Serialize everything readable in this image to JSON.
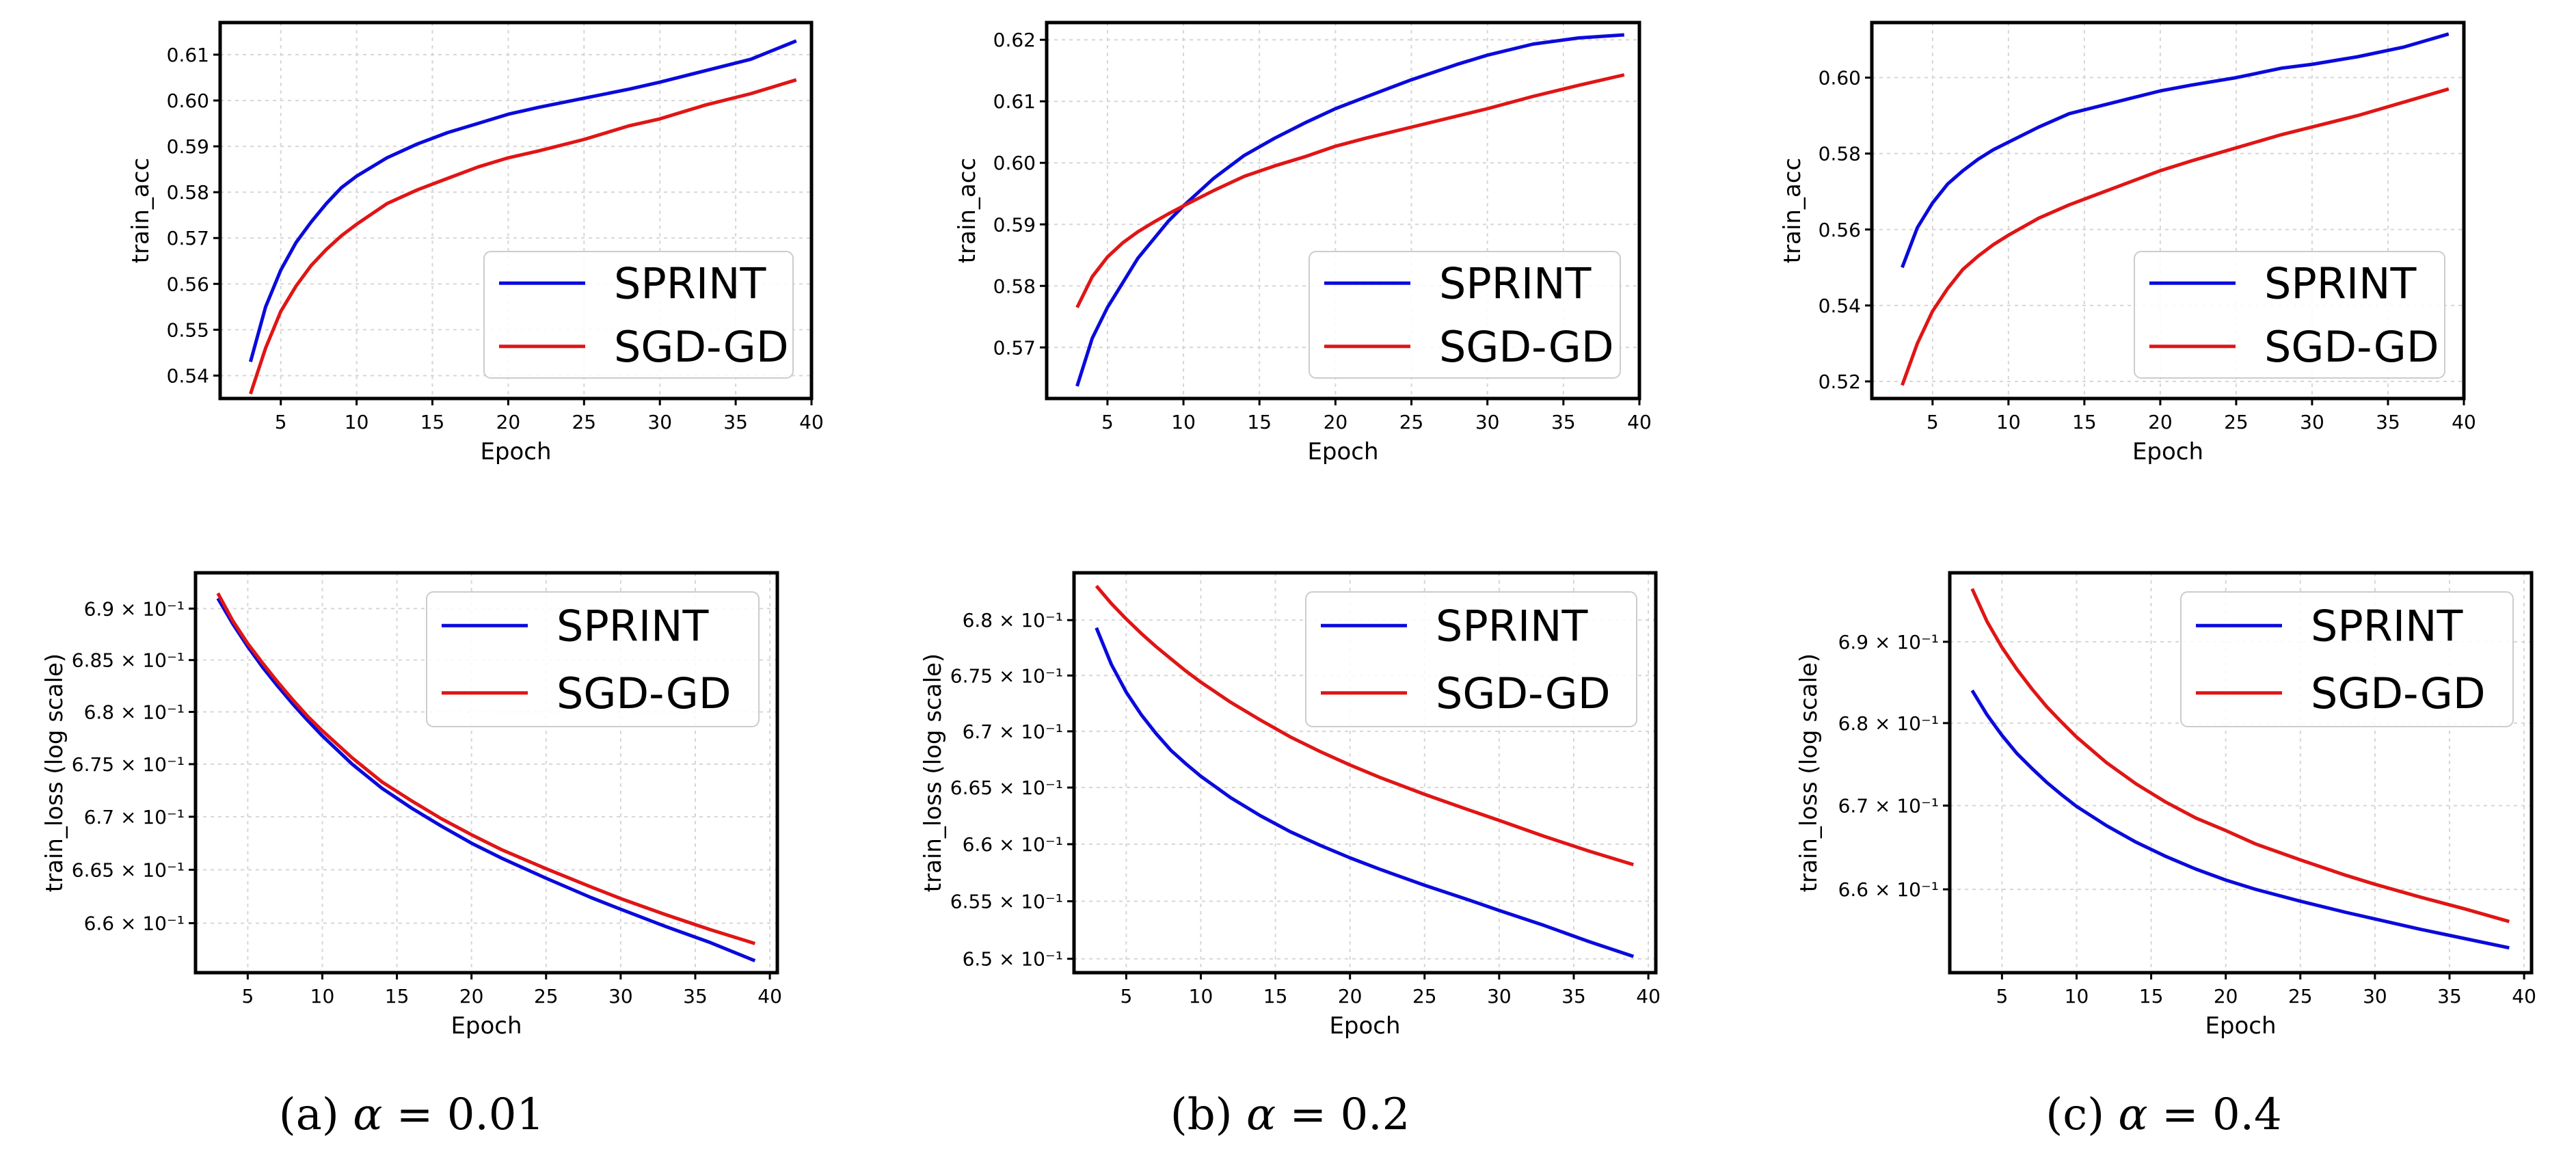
{
  "colors": {
    "SPRINT": "#0a0adc",
    "SGD-GD": "#e01515"
  },
  "captions": [
    {
      "prefix": "(a) ",
      "alpha": "α",
      "rest": " = 0.01"
    },
    {
      "prefix": "(b) ",
      "alpha": "α",
      "rest": " = 0.2"
    },
    {
      "prefix": "(c) ",
      "alpha": "α",
      "rest": " = 0.4"
    }
  ],
  "chart_data": [
    {
      "type": "line",
      "panel": "a-top",
      "title": "",
      "xlabel": "Epoch",
      "ylabel": "train_acc",
      "xlim": [
        1,
        40
      ],
      "ylim": [
        0.535,
        0.617
      ],
      "xticks": [
        5,
        10,
        15,
        20,
        25,
        30,
        35,
        40
      ],
      "yticks": [
        0.54,
        0.55,
        0.56,
        0.57,
        0.58,
        0.59,
        0.6,
        0.61
      ],
      "ytick_labels": [
        "0.54",
        "0.55",
        "0.56",
        "0.57",
        "0.58",
        "0.59",
        "0.60",
        "0.61"
      ],
      "yscale": "linear",
      "grid": true,
      "legend": "lower-right",
      "series": [
        {
          "name": "SPRINT",
          "x": [
            3,
            4,
            5,
            6,
            7,
            8,
            9,
            10,
            12,
            14,
            16,
            18,
            20,
            22,
            25,
            28,
            30,
            33,
            36,
            39
          ],
          "y": [
            0.543,
            0.555,
            0.563,
            0.569,
            0.5735,
            0.5775,
            0.581,
            0.5835,
            0.5875,
            0.5905,
            0.593,
            0.595,
            0.597,
            0.5985,
            0.6005,
            0.6025,
            0.604,
            0.6065,
            0.609,
            0.613
          ]
        },
        {
          "name": "SGD-GD",
          "x": [
            3,
            4,
            5,
            6,
            7,
            8,
            9,
            10,
            12,
            14,
            16,
            18,
            20,
            22,
            25,
            28,
            30,
            33,
            36,
            39
          ],
          "y": [
            0.536,
            0.546,
            0.554,
            0.5595,
            0.564,
            0.5675,
            0.5705,
            0.573,
            0.5775,
            0.5805,
            0.583,
            0.5855,
            0.5875,
            0.589,
            0.5915,
            0.5945,
            0.596,
            0.599,
            0.6015,
            0.6045
          ]
        }
      ]
    },
    {
      "type": "line",
      "panel": "b-top",
      "title": "",
      "xlabel": "Epoch",
      "ylabel": "train_acc",
      "xlim": [
        1,
        40
      ],
      "ylim": [
        0.5617,
        0.6228
      ],
      "xticks": [
        5,
        10,
        15,
        20,
        25,
        30,
        35,
        40
      ],
      "yticks": [
        0.57,
        0.58,
        0.59,
        0.6,
        0.61,
        0.62
      ],
      "ytick_labels": [
        "0.57",
        "0.58",
        "0.59",
        "0.60",
        "0.61",
        "0.62"
      ],
      "yscale": "linear",
      "grid": true,
      "legend": "lower-right",
      "series": [
        {
          "name": "SPRINT",
          "x": [
            3,
            4,
            5,
            6,
            7,
            8,
            9,
            10,
            12,
            14,
            16,
            18,
            20,
            22,
            25,
            28,
            30,
            33,
            36,
            39
          ],
          "y": [
            0.5637,
            0.5715,
            0.5765,
            0.5805,
            0.5845,
            0.5875,
            0.5905,
            0.593,
            0.5975,
            0.6012,
            0.604,
            0.6065,
            0.6088,
            0.6107,
            0.6135,
            0.616,
            0.6175,
            0.6193,
            0.6203,
            0.6208
          ]
        },
        {
          "name": "SGD-GD",
          "x": [
            3,
            4,
            5,
            6,
            7,
            8,
            9,
            10,
            12,
            14,
            16,
            18,
            20,
            22,
            25,
            28,
            30,
            33,
            36,
            39
          ],
          "y": [
            0.5765,
            0.5815,
            0.5847,
            0.587,
            0.5888,
            0.5903,
            0.5917,
            0.593,
            0.5955,
            0.5978,
            0.5995,
            0.601,
            0.6027,
            0.604,
            0.6058,
            0.6076,
            0.6088,
            0.6108,
            0.6126,
            0.6143
          ]
        }
      ]
    },
    {
      "type": "line",
      "panel": "c-top",
      "title": "",
      "xlabel": "Epoch",
      "ylabel": "train_acc",
      "xlim": [
        1,
        40
      ],
      "ylim": [
        0.5155,
        0.6145
      ],
      "xticks": [
        5,
        10,
        15,
        20,
        25,
        30,
        35,
        40
      ],
      "yticks": [
        0.52,
        0.54,
        0.56,
        0.58,
        0.6
      ],
      "ytick_labels": [
        "0.52",
        "0.54",
        "0.56",
        "0.58",
        "0.60"
      ],
      "yscale": "linear",
      "grid": true,
      "legend": "lower-right",
      "series": [
        {
          "name": "SPRINT",
          "x": [
            3,
            4,
            5,
            6,
            7,
            8,
            9,
            10,
            12,
            14,
            16,
            18,
            20,
            22,
            25,
            28,
            30,
            33,
            36,
            39
          ],
          "y": [
            0.55,
            0.5605,
            0.567,
            0.572,
            0.5755,
            0.5785,
            0.581,
            0.583,
            0.587,
            0.5905,
            0.5925,
            0.5945,
            0.5965,
            0.598,
            0.6,
            0.6025,
            0.6035,
            0.6055,
            0.608,
            0.6115
          ]
        },
        {
          "name": "SGD-GD",
          "x": [
            3,
            4,
            5,
            6,
            7,
            8,
            9,
            10,
            12,
            14,
            16,
            18,
            20,
            22,
            25,
            28,
            30,
            33,
            36,
            39
          ],
          "y": [
            0.519,
            0.53,
            0.5385,
            0.5445,
            0.5495,
            0.553,
            0.556,
            0.5585,
            0.563,
            0.5665,
            0.5695,
            0.5725,
            0.5755,
            0.578,
            0.5815,
            0.585,
            0.587,
            0.59,
            0.5935,
            0.597
          ]
        }
      ]
    },
    {
      "type": "line",
      "panel": "a-bottom",
      "title": "",
      "xlabel": "Epoch",
      "ylabel": "train_loss (log scale)",
      "xlim": [
        1.5,
        40.5
      ],
      "ylim": [
        0.6554,
        0.6935
      ],
      "xticks": [
        5,
        10,
        15,
        20,
        25,
        30,
        35,
        40
      ],
      "yticks": [
        0.66,
        0.665,
        0.67,
        0.675,
        0.68,
        0.685,
        0.69
      ],
      "ytick_labels": [
        "6.6 × 10⁻¹",
        "6.65 × 10⁻¹",
        "6.7 × 10⁻¹",
        "6.75 × 10⁻¹",
        "6.8 × 10⁻¹",
        "6.85 × 10⁻¹",
        "6.9 × 10⁻¹"
      ],
      "yscale": "log",
      "grid": true,
      "legend": "upper-right",
      "series": [
        {
          "name": "SPRINT",
          "x": [
            3,
            4,
            5,
            6,
            7,
            8,
            9,
            10,
            12,
            14,
            16,
            18,
            20,
            22,
            25,
            28,
            30,
            33,
            36,
            39
          ],
          "y": [
            0.691,
            0.6885,
            0.6863,
            0.6843,
            0.6825,
            0.6808,
            0.6792,
            0.6777,
            0.675,
            0.6727,
            0.6708,
            0.6691,
            0.6675,
            0.6661,
            0.6642,
            0.6624,
            0.6613,
            0.6597,
            0.6582,
            0.6565
          ]
        },
        {
          "name": "SGD-GD",
          "x": [
            3,
            4,
            5,
            6,
            7,
            8,
            9,
            10,
            12,
            14,
            16,
            18,
            20,
            22,
            25,
            28,
            30,
            33,
            36,
            39
          ],
          "y": [
            0.6915,
            0.6888,
            0.6866,
            0.6847,
            0.6829,
            0.6812,
            0.6796,
            0.6782,
            0.6756,
            0.6733,
            0.6715,
            0.6698,
            0.6683,
            0.6669,
            0.6651,
            0.6634,
            0.6623,
            0.6608,
            0.6594,
            0.6581
          ]
        }
      ]
    },
    {
      "type": "line",
      "panel": "b-bottom",
      "title": "",
      "xlabel": "Epoch",
      "ylabel": "train_loss (log scale)",
      "xlim": [
        1.5,
        40.5
      ],
      "ylim": [
        0.6488,
        0.6843
      ],
      "xticks": [
        5,
        10,
        15,
        20,
        25,
        30,
        35,
        40
      ],
      "yticks": [
        0.65,
        0.655,
        0.66,
        0.665,
        0.67,
        0.675,
        0.68
      ],
      "ytick_labels": [
        "6.5 × 10⁻¹",
        "6.55 × 10⁻¹",
        "6.6 × 10⁻¹",
        "6.65 × 10⁻¹",
        "6.7 × 10⁻¹",
        "6.75 × 10⁻¹",
        "6.8 × 10⁻¹"
      ],
      "yscale": "log",
      "grid": true,
      "legend": "upper-right",
      "series": [
        {
          "name": "SPRINT",
          "x": [
            3,
            4,
            5,
            6,
            7,
            8,
            9,
            10,
            12,
            14,
            16,
            18,
            20,
            22,
            25,
            28,
            30,
            33,
            36,
            39
          ],
          "y": [
            0.6793,
            0.676,
            0.6735,
            0.6715,
            0.6698,
            0.6683,
            0.6671,
            0.666,
            0.6641,
            0.6625,
            0.6611,
            0.6599,
            0.6588,
            0.6578,
            0.6564,
            0.6551,
            0.6542,
            0.6529,
            0.6515,
            0.6502
          ]
        },
        {
          "name": "SGD-GD",
          "x": [
            3,
            4,
            5,
            6,
            7,
            8,
            9,
            10,
            12,
            14,
            16,
            18,
            20,
            22,
            25,
            28,
            30,
            33,
            36,
            39
          ],
          "y": [
            0.6831,
            0.6815,
            0.6801,
            0.6788,
            0.6776,
            0.6765,
            0.6754,
            0.6744,
            0.6726,
            0.671,
            0.6695,
            0.6682,
            0.667,
            0.6659,
            0.6644,
            0.663,
            0.6621,
            0.6607,
            0.6594,
            0.6582
          ]
        }
      ]
    },
    {
      "type": "line",
      "panel": "c-bottom",
      "title": "",
      "xlabel": "Epoch",
      "ylabel": "train_loss (log scale)",
      "xlim": [
        1.5,
        40.5
      ],
      "ylim": [
        0.6502,
        0.6986
      ],
      "xticks": [
        5,
        10,
        15,
        20,
        25,
        30,
        35,
        40
      ],
      "yticks": [
        0.66,
        0.67,
        0.68,
        0.69
      ],
      "ytick_labels": [
        "6.6 × 10⁻¹",
        "6.7 × 10⁻¹",
        "6.8 × 10⁻¹",
        "6.9 × 10⁻¹"
      ],
      "yscale": "log",
      "grid": true,
      "legend": "upper-right",
      "series": [
        {
          "name": "SPRINT",
          "x": [
            3,
            4,
            5,
            6,
            7,
            8,
            9,
            10,
            12,
            14,
            16,
            18,
            20,
            22,
            25,
            28,
            30,
            33,
            36,
            39
          ],
          "y": [
            0.684,
            0.681,
            0.6785,
            0.6763,
            0.6745,
            0.6728,
            0.6713,
            0.6699,
            0.6676,
            0.6656,
            0.6639,
            0.6624,
            0.6611,
            0.66,
            0.6586,
            0.6573,
            0.6565,
            0.6553,
            0.6542,
            0.6531
          ]
        },
        {
          "name": "SGD-GD",
          "x": [
            3,
            4,
            5,
            6,
            7,
            8,
            9,
            10,
            12,
            14,
            16,
            18,
            20,
            22,
            25,
            28,
            30,
            33,
            36,
            39
          ],
          "y": [
            0.6966,
            0.6925,
            0.6893,
            0.6866,
            0.6842,
            0.682,
            0.6801,
            0.6783,
            0.6752,
            0.6726,
            0.6704,
            0.6685,
            0.667,
            0.6654,
            0.6635,
            0.6617,
            0.6606,
            0.6591,
            0.6577,
            0.6562
          ]
        }
      ]
    }
  ]
}
